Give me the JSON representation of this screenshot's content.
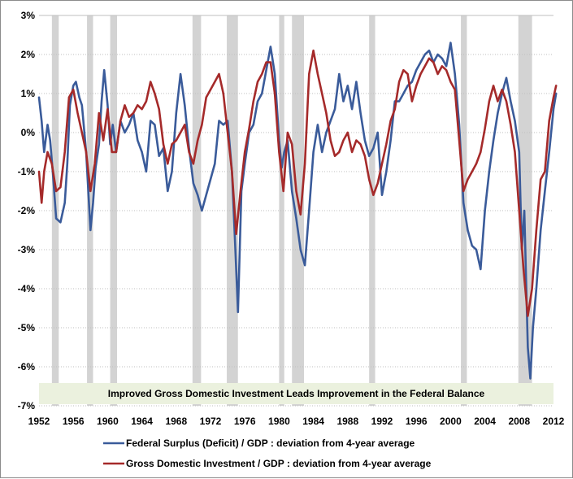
{
  "chart_data": {
    "type": "line",
    "title": "",
    "xlabel": "",
    "ylabel": "",
    "xlim": [
      1952,
      2012
    ],
    "ylim": [
      -7,
      3
    ],
    "y_tick_labels": [
      "3%",
      "2%",
      "1%",
      "0%",
      "-1%",
      "-2%",
      "-3%",
      "-4%",
      "-5%",
      "-6%",
      "-7%"
    ],
    "y_tick_values": [
      3,
      2,
      1,
      0,
      -1,
      -2,
      -3,
      -4,
      -5,
      -6,
      -7
    ],
    "x_tick_labels": [
      "1952",
      "1956",
      "1960",
      "1964",
      "1968",
      "1972",
      "1976",
      "1980",
      "1984",
      "1988",
      "1992",
      "1996",
      "2000",
      "2004",
      "2008",
      "2012"
    ],
    "x_tick_values": [
      1952,
      1956,
      1960,
      1964,
      1968,
      1972,
      1976,
      1980,
      1984,
      1988,
      1992,
      1996,
      2000,
      2004,
      2008,
      2012
    ],
    "grid": true,
    "legend_position": "bottom",
    "annotation": "Improved Gross Domestic Investment Leads Improvement in the Federal Balance",
    "recession_bands": [
      [
        1953.5,
        1954.3
      ],
      [
        1957.6,
        1958.3
      ],
      [
        1960.3,
        1961.1
      ],
      [
        1969.9,
        1970.9
      ],
      [
        1973.9,
        1975.2
      ],
      [
        1980.0,
        1980.6
      ],
      [
        1981.5,
        1982.9
      ],
      [
        1990.5,
        1991.2
      ],
      [
        2001.2,
        2001.9
      ],
      [
        2007.9,
        2009.5
      ]
    ],
    "colors": {
      "federal": "#3a5b9a",
      "investment": "#a52a2a",
      "recession": "#d3d3d3",
      "annotation_bg": "#ebf1de",
      "grid": "#bfbfbf"
    },
    "series": [
      {
        "name": "Federal Surplus (Deficit) / GDP : deviation from 4-year average",
        "x": [
          1952.0,
          1952.3,
          1952.6,
          1953.0,
          1953.3,
          1953.6,
          1954.0,
          1954.5,
          1955.0,
          1955.3,
          1955.6,
          1956.0,
          1956.3,
          1956.7,
          1957.0,
          1957.5,
          1958.0,
          1958.3,
          1958.6,
          1959.0,
          1959.3,
          1959.6,
          1960.0,
          1960.3,
          1960.6,
          1961.0,
          1961.5,
          1962.0,
          1962.5,
          1963.0,
          1963.5,
          1964.0,
          1964.5,
          1965.0,
          1965.5,
          1966.0,
          1966.5,
          1967.0,
          1967.5,
          1968.0,
          1968.5,
          1969.0,
          1969.5,
          1970.0,
          1970.5,
          1971.0,
          1971.5,
          1972.0,
          1972.5,
          1973.0,
          1973.5,
          1974.0,
          1974.5,
          1974.9,
          1975.2,
          1975.6,
          1976.0,
          1976.5,
          1977.0,
          1977.5,
          1978.0,
          1978.5,
          1979.0,
          1979.5,
          1980.0,
          1980.3,
          1980.6,
          1981.0,
          1981.5,
          1982.0,
          1982.5,
          1983.0,
          1983.5,
          1984.0,
          1984.5,
          1985.0,
          1985.5,
          1986.0,
          1986.5,
          1987.0,
          1987.5,
          1988.0,
          1988.5,
          1989.0,
          1989.5,
          1990.0,
          1990.5,
          1991.0,
          1991.5,
          1992.0,
          1992.5,
          1993.0,
          1993.5,
          1994.0,
          1994.5,
          1995.0,
          1995.5,
          1996.0,
          1996.5,
          1997.0,
          1997.5,
          1998.0,
          1998.5,
          1999.0,
          1999.5,
          2000.0,
          2000.5,
          2001.0,
          2001.5,
          2002.0,
          2002.5,
          2003.0,
          2003.5,
          2004.0,
          2004.5,
          2005.0,
          2005.5,
          2006.0,
          2006.5,
          2007.0,
          2007.5,
          2008.0,
          2008.3,
          2008.6,
          2009.0,
          2009.3,
          2009.6,
          2010.0,
          2010.5,
          2011.0,
          2011.5,
          2012.0,
          2012.3
        ],
        "values": [
          0.9,
          0.3,
          -0.5,
          0.2,
          -0.2,
          -1.0,
          -2.2,
          -2.3,
          -1.8,
          -0.8,
          0.7,
          1.2,
          1.3,
          0.9,
          0.7,
          -0.5,
          -2.5,
          -1.8,
          -0.9,
          -0.3,
          0.8,
          1.6,
          0.7,
          -0.3,
          0.2,
          -0.5,
          0.3,
          0.0,
          0.2,
          0.5,
          -0.2,
          -0.5,
          -1.0,
          0.3,
          0.2,
          -0.6,
          -0.4,
          -1.5,
          -1.0,
          0.5,
          1.5,
          0.7,
          -0.4,
          -1.3,
          -1.6,
          -2.0,
          -1.6,
          -1.2,
          -0.8,
          0.3,
          0.2,
          0.3,
          -1.0,
          -3.0,
          -4.6,
          -1.5,
          -0.8,
          0.0,
          0.2,
          0.8,
          1.0,
          1.6,
          2.2,
          1.5,
          -0.2,
          -0.9,
          -0.5,
          -0.2,
          -1.5,
          -2.2,
          -3.0,
          -3.4,
          -2.0,
          -0.5,
          0.2,
          -0.5,
          0.0,
          0.3,
          0.6,
          1.5,
          0.8,
          1.2,
          0.6,
          1.3,
          0.5,
          -0.2,
          -0.6,
          -0.4,
          0.0,
          -1.6,
          -1.0,
          -0.2,
          0.8,
          0.8,
          1.0,
          1.2,
          1.3,
          1.6,
          1.8,
          2.0,
          2.1,
          1.8,
          2.0,
          1.9,
          1.7,
          2.3,
          1.5,
          0.2,
          -1.8,
          -2.5,
          -2.9,
          -3.0,
          -3.5,
          -2.0,
          -1.0,
          -0.2,
          0.5,
          1.0,
          1.4,
          0.8,
          0.3,
          -0.5,
          -3.0,
          -2.0,
          -5.5,
          -6.3,
          -5.0,
          -4.0,
          -2.5,
          -1.5,
          -0.5,
          0.6,
          1.0
        ]
      },
      {
        "name": "Gross Domestic Investment / GDP : deviation from 4-year average",
        "x": [
          1952.0,
          1952.3,
          1952.6,
          1953.0,
          1953.5,
          1954.0,
          1954.5,
          1955.0,
          1955.5,
          1956.0,
          1956.5,
          1957.0,
          1957.5,
          1958.0,
          1958.5,
          1959.0,
          1959.5,
          1960.0,
          1960.5,
          1961.0,
          1961.5,
          1962.0,
          1962.5,
          1963.0,
          1963.5,
          1964.0,
          1964.5,
          1965.0,
          1965.5,
          1966.0,
          1966.5,
          1967.0,
          1967.5,
          1968.0,
          1968.5,
          1969.0,
          1969.5,
          1970.0,
          1970.5,
          1971.0,
          1971.5,
          1972.0,
          1972.5,
          1973.0,
          1973.5,
          1974.0,
          1974.5,
          1975.0,
          1975.5,
          1976.0,
          1976.5,
          1977.0,
          1977.5,
          1978.0,
          1978.5,
          1979.0,
          1979.5,
          1980.0,
          1980.5,
          1981.0,
          1981.5,
          1982.0,
          1982.5,
          1983.0,
          1983.5,
          1984.0,
          1984.5,
          1985.0,
          1985.5,
          1986.0,
          1986.5,
          1987.0,
          1987.5,
          1988.0,
          1988.5,
          1989.0,
          1989.5,
          1990.0,
          1990.5,
          1991.0,
          1991.5,
          1992.0,
          1992.5,
          1993.0,
          1993.5,
          1994.0,
          1994.5,
          1995.0,
          1995.5,
          1996.0,
          1996.5,
          1997.0,
          1997.5,
          1998.0,
          1998.5,
          1999.0,
          1999.5,
          2000.0,
          2000.5,
          2001.0,
          2001.5,
          2002.0,
          2002.5,
          2003.0,
          2003.5,
          2004.0,
          2004.5,
          2005.0,
          2005.5,
          2006.0,
          2006.5,
          2007.0,
          2007.5,
          2008.0,
          2008.5,
          2009.0,
          2009.5,
          2010.0,
          2010.5,
          2011.0,
          2011.5,
          2012.0,
          2012.3
        ],
        "values": [
          -1.0,
          -1.8,
          -1.0,
          -0.5,
          -0.8,
          -1.5,
          -1.4,
          -0.5,
          0.9,
          1.1,
          0.5,
          0.0,
          -0.5,
          -1.5,
          -0.8,
          0.5,
          -0.2,
          0.6,
          -0.5,
          -0.5,
          0.3,
          0.7,
          0.4,
          0.5,
          0.7,
          0.6,
          0.8,
          1.3,
          1.0,
          0.6,
          -0.3,
          -0.8,
          -0.3,
          -0.2,
          0.0,
          0.2,
          -0.5,
          -0.8,
          -0.2,
          0.2,
          0.9,
          1.1,
          1.3,
          1.5,
          1.0,
          0.0,
          -1.0,
          -2.6,
          -1.5,
          -0.5,
          0.1,
          0.8,
          1.3,
          1.5,
          1.8,
          1.8,
          1.0,
          -0.5,
          -1.5,
          0.0,
          -0.3,
          -1.5,
          -2.1,
          -0.8,
          1.5,
          2.1,
          1.5,
          1.0,
          0.5,
          -0.2,
          -0.6,
          -0.5,
          -0.2,
          0.0,
          -0.5,
          -0.2,
          -0.3,
          -0.6,
          -1.2,
          -1.6,
          -1.3,
          -0.8,
          -0.3,
          0.3,
          0.6,
          1.3,
          1.6,
          1.5,
          0.8,
          1.2,
          1.5,
          1.7,
          1.9,
          1.8,
          1.5,
          1.7,
          1.6,
          1.3,
          1.1,
          -0.2,
          -1.5,
          -1.2,
          -1.0,
          -0.8,
          -0.5,
          0.1,
          0.8,
          1.2,
          0.8,
          1.1,
          0.8,
          0.2,
          -0.5,
          -2.0,
          -3.5,
          -4.7,
          -4.0,
          -2.5,
          -1.2,
          -1.0,
          0.3,
          0.9,
          1.2
        ]
      }
    ]
  }
}
